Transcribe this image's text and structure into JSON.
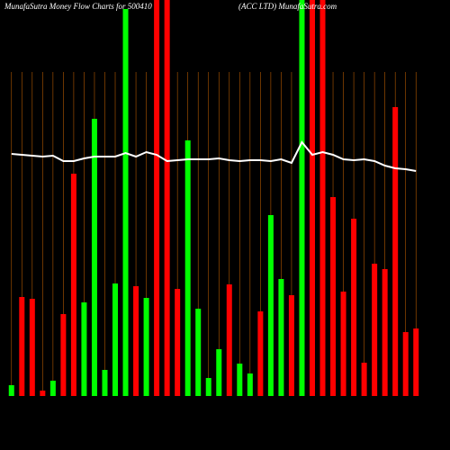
{
  "chart_data": {
    "type": "bar",
    "title": "MunafaSutra  Money Flow  Charts for 500410",
    "subtitle": "(ACC LTD) MunafaSutra.com",
    "categories": [
      null,
      null,
      null,
      null,
      null,
      null,
      null,
      null,
      null,
      null,
      null,
      null,
      null,
      null,
      null,
      null,
      null,
      null,
      null,
      null,
      null,
      null,
      null,
      null,
      null,
      null,
      null,
      null,
      null,
      null,
      null,
      null,
      null,
      null,
      null,
      null,
      null,
      null,
      null,
      null
    ],
    "ylim": [
      0,
      440
    ],
    "grid_color": "#b35900",
    "series": [
      {
        "type": "bar",
        "values": [
          12,
          110,
          108,
          6,
          17,
          91,
          247,
          104,
          308,
          29,
          125,
          430,
          122,
          109,
          440,
          440,
          119,
          284,
          97,
          20,
          52,
          124,
          36,
          25,
          94,
          201,
          130,
          112,
          440,
          440,
          440,
          221,
          116,
          197,
          37,
          147,
          141,
          321,
          71,
          75
        ],
        "colors": [
          "#00ff00",
          "#ff0000",
          "#ff0000",
          "#ff0000",
          "#00ff00",
          "#ff0000",
          "#ff0000",
          "#00ff00",
          "#00ff00",
          "#00ff00",
          "#00ff00",
          "#00ff00",
          "#ff0000",
          "#00ff00",
          "#ff0000",
          "#ff0000",
          "#ff0000",
          "#00ff00",
          "#00ff00",
          "#00ff00",
          "#00ff00",
          "#ff0000",
          "#00ff00",
          "#00ff00",
          "#ff0000",
          "#00ff00",
          "#00ff00",
          "#ff0000",
          "#00ff00",
          "#ff0000",
          "#ff0000",
          "#ff0000",
          "#ff0000",
          "#ff0000",
          "#ff0000",
          "#ff0000",
          "#ff0000",
          "#ff0000",
          "#ff0000",
          "#ff0000"
        ]
      },
      {
        "type": "line",
        "color": "#ffffff",
        "values": [
          269,
          268,
          267,
          266,
          267,
          261,
          261,
          264,
          266,
          266,
          266,
          270,
          266,
          271,
          268,
          261,
          262,
          263,
          263,
          263,
          264,
          262,
          261,
          262,
          262,
          261,
          263,
          259,
          282,
          268,
          271,
          268,
          263,
          262,
          263,
          261,
          256,
          253,
          252,
          250
        ]
      }
    ]
  }
}
